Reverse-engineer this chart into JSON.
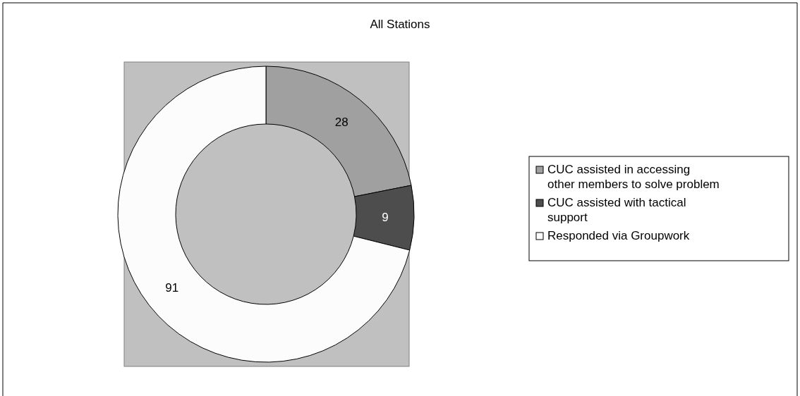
{
  "chart_data": {
    "type": "donut",
    "title": "All Stations",
    "categories": [
      "CUC assisted in accessing other members to solve problem",
      "CUC assisted with tactical support",
      "Responded via Groupwork"
    ],
    "values": [
      28,
      9,
      91
    ],
    "colors": [
      "#a0a0a0",
      "#4d4d4d",
      "#fcfcfc"
    ],
    "data_labels": true,
    "legend": "right"
  }
}
